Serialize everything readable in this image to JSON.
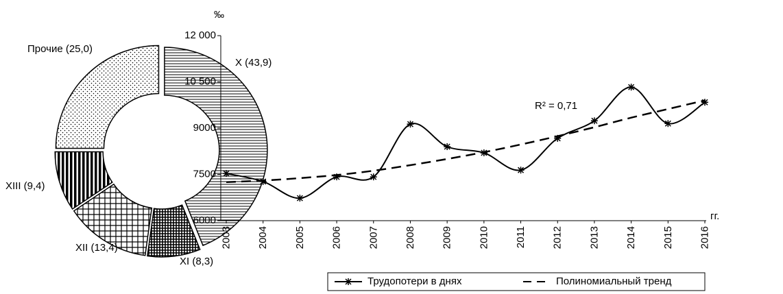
{
  "chart_data": [
    {
      "type": "donut",
      "values": [
        43.9,
        8.3,
        13.4,
        9.4,
        25.0
      ],
      "value_labels": [
        "X (43,9)",
        "XI (8,3)",
        "XII (13,4)",
        "XIII (9,4)",
        "Прочие (25,0)"
      ],
      "patterns": [
        "hlines",
        "densegrid",
        "grid",
        "vbars",
        "dots"
      ]
    },
    {
      "type": "line",
      "y_label": "‰",
      "x_unit": "гг.",
      "annotation": "R² = 0,71",
      "categories": [
        "2003",
        "2004",
        "2005",
        "2006",
        "2007",
        "2008",
        "2009",
        "2010",
        "2011",
        "2012",
        "2013",
        "2014",
        "2015",
        "2016"
      ],
      "series": [
        {
          "name": "Трудопотери в днях",
          "color": "#000000",
          "style": "solid-markers",
          "values": [
            7530,
            7270,
            6730,
            7420,
            7420,
            9130,
            8400,
            8200,
            7640,
            8670,
            9240,
            10330,
            9150,
            9840
          ]
        },
        {
          "name": "Полиномиальный тренд",
          "color": "#000000",
          "style": "dashed",
          "values": [
            7250,
            7300,
            7380,
            7480,
            7620,
            7800,
            8000,
            8220,
            8470,
            8740,
            9030,
            9340,
            9620,
            9900
          ]
        }
      ],
      "ylim": [
        6000,
        12000
      ],
      "yticks": [
        6000,
        7500,
        9000,
        {
          "value": 10500,
          "label": "10 500"
        },
        {
          "value": 12000,
          "label": "12 000"
        }
      ]
    }
  ]
}
